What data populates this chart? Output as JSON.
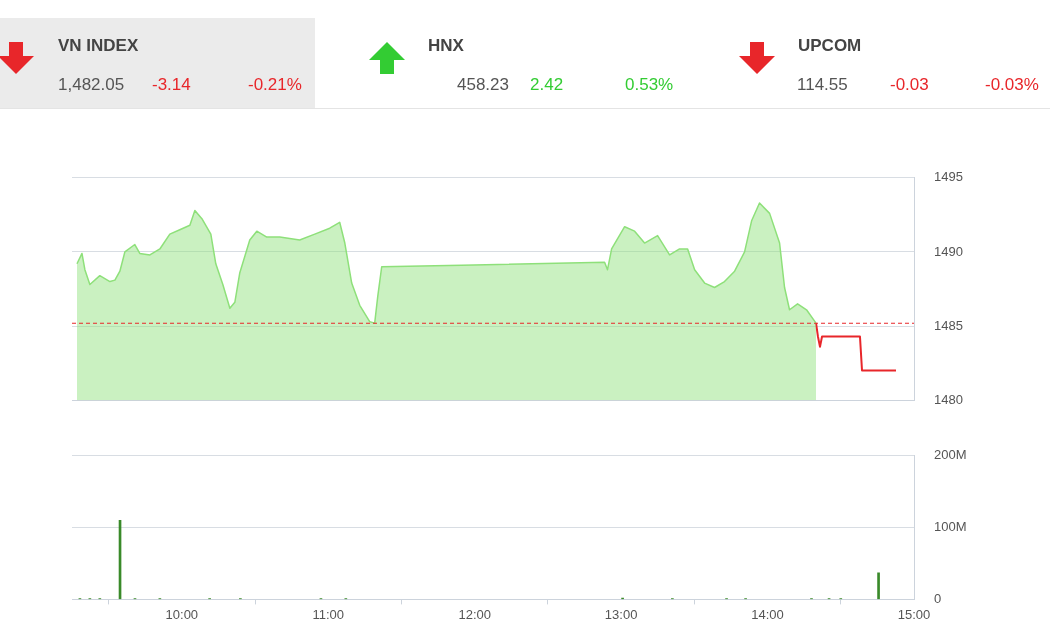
{
  "chart_data": [
    {
      "type": "other",
      "title": "VN INDEX",
      "subtitle": "1,482.05",
      "values": [
        -3.14,
        -0.21
      ],
      "value_labels": [
        "-3.14",
        "-0.21%"
      ],
      "color": "#e8262a"
    },
    {
      "type": "other",
      "title": "HNX",
      "subtitle": "458.23",
      "values": [
        2.42,
        0.53
      ],
      "value_labels": [
        "2.42",
        "0.53%"
      ],
      "color": "#33cc33"
    },
    {
      "type": "other",
      "title": "UPCOM",
      "subtitle": "114.55",
      "values": [
        -0.03,
        -0.03
      ],
      "value_labels": [
        "-0.03",
        "-0.03%"
      ],
      "color": "#e8262a"
    },
    {
      "type": "area",
      "xlim": [
        9.25,
        15
      ],
      "ylim": [
        1480,
        1495
      ],
      "yticks": [
        1480,
        1485,
        1490,
        1495
      ],
      "tick_labels": "y",
      "grid": "y",
      "series": [
        {
          "type": "area",
          "color": "#8ee07a",
          "x": [
            9.284,
            9.318,
            9.338,
            9.372,
            9.44,
            9.509,
            9.543,
            9.577,
            9.611,
            9.679,
            9.713,
            9.782,
            9.85,
            9.918,
            9.986,
            10.055,
            10.089,
            10.14,
            10.198,
            10.232,
            10.28,
            10.328,
            10.362,
            10.396,
            10.464,
            10.512,
            10.58,
            10.669,
            10.805,
            10.908,
            11.01,
            11.078,
            11.113,
            11.16,
            11.215,
            11.283,
            11.317,
            11.338,
            11.365,
            11.911,
            12.887,
            12.907,
            12.935,
            13.024,
            13.092,
            13.16,
            13.249,
            13.331,
            13.399,
            13.454,
            13.502,
            13.57,
            13.638,
            13.706,
            13.775,
            13.843,
            13.891,
            13.945,
            14.014,
            14.082,
            14.116,
            14.15,
            14.205,
            14.266,
            14.331
          ],
          "values": [
            1489.2,
            1489.9,
            1488.8,
            1487.8,
            1488.4,
            1488.0,
            1488.1,
            1488.7,
            1490.0,
            1490.5,
            1489.9,
            1489.8,
            1490.2,
            1491.2,
            1491.5,
            1491.8,
            1492.8,
            1492.2,
            1491.2,
            1489.2,
            1487.8,
            1486.2,
            1486.6,
            1488.6,
            1490.8,
            1491.4,
            1491.0,
            1491.0,
            1490.8,
            1491.2,
            1491.6,
            1492.0,
            1490.6,
            1487.9,
            1486.4,
            1485.3,
            1485.2,
            1487.0,
            1489.0,
            1489.1,
            1489.3,
            1488.8,
            1490.2,
            1491.7,
            1491.4,
            1490.6,
            1491.1,
            1489.8,
            1490.2,
            1490.2,
            1488.8,
            1487.9,
            1487.6,
            1488.0,
            1488.7,
            1490.0,
            1492.1,
            1493.3,
            1492.6,
            1490.6,
            1487.6,
            1486.1,
            1486.5,
            1486.1,
            1485.2
          ]
        },
        {
          "type": "line",
          "color": "#e8262a",
          "x": [
            14.331,
            14.344,
            14.358,
            14.372,
            14.631,
            14.645,
            14.877
          ],
          "values": [
            1485.2,
            1484.3,
            1483.6,
            1484.3,
            1484.3,
            1482.0,
            1482.0
          ]
        }
      ],
      "ref_lines": [
        {
          "axis": "y",
          "value": 1485.19,
          "color": "#e8262a",
          "line_style": "dashed"
        }
      ]
    },
    {
      "type": "bar",
      "xlim": [
        9.25,
        15
      ],
      "xticks": [
        {
          "value": 10,
          "label": "10:00"
        },
        {
          "value": 11,
          "label": "11:00"
        },
        {
          "value": 12,
          "label": "12:00"
        },
        {
          "value": 13,
          "label": "13:00"
        },
        {
          "value": 14,
          "label": "14:00"
        },
        {
          "value": 15,
          "label": "15:00"
        }
      ],
      "ylim": [
        0,
        200
      ],
      "yticks": [
        {
          "value": 0,
          "label": "0"
        },
        {
          "value": 100,
          "label": "100M"
        },
        {
          "value": 200,
          "label": "200M"
        }
      ],
      "grid": "y",
      "color": "#3a8a2a",
      "x": [
        9.304,
        9.372,
        9.44,
        9.578,
        9.68,
        9.85,
        10.19,
        10.4,
        10.95,
        11.12,
        13.01,
        13.35,
        13.72,
        13.85,
        14.3,
        14.42,
        14.5,
        14.758
      ],
      "values": [
        1,
        1,
        1,
        110,
        1,
        1,
        1,
        1,
        1,
        1,
        2,
        1,
        1,
        1,
        1,
        1,
        1,
        37
      ]
    }
  ]
}
